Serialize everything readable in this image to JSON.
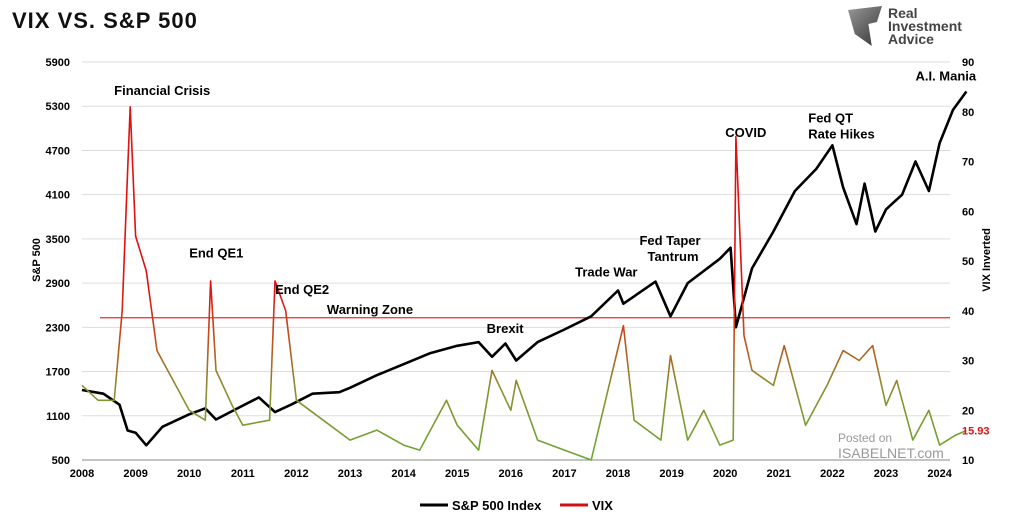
{
  "header": {
    "title": "VIX VS. S&P 500",
    "logo": "Real Investment Advice"
  },
  "watermark": {
    "line1": "Posted on",
    "line2": "ISABELNET.com"
  },
  "chart_data": {
    "type": "line",
    "title": "VIX VS. S&P 500",
    "ylabel": "S&P 500",
    "y2label": "VIX Inverted",
    "xlim": [
      2008,
      2024.6
    ],
    "ylim": [
      500,
      5900
    ],
    "y2lim": [
      10,
      90
    ],
    "xticks": [
      "2008",
      "2009",
      "2010",
      "2011",
      "2012",
      "2013",
      "2014",
      "2015",
      "2016",
      "2017",
      "2018",
      "2019",
      "2020",
      "2021",
      "2022",
      "2023",
      "2024"
    ],
    "yticks": [
      "500",
      "1100",
      "1700",
      "2300",
      "2900",
      "3500",
      "4100",
      "4700",
      "5300",
      "5900"
    ],
    "y2ticks": [
      "10",
      "20",
      "30",
      "40",
      "50",
      "60",
      "70",
      "80",
      "90"
    ],
    "grid": true,
    "legend_placement": "bottom",
    "warning_zone": {
      "label": "Warning Zone",
      "value_left_axis": 2430,
      "color": "#e03030"
    },
    "last_vix_label": "15.93",
    "annotations": [
      {
        "text": "Financial Crisis",
        "x": 2008.6,
        "y": 5450
      },
      {
        "text": "End QE1",
        "x": 2010.0,
        "y": 3250
      },
      {
        "text": "End QE2",
        "x": 2011.6,
        "y": 2750
      },
      {
        "text": "Brexit",
        "x": 2015.55,
        "y": 2220
      },
      {
        "text": "Trade War",
        "x": 2017.2,
        "y": 2990
      },
      {
        "text": "Fed Taper",
        "x": 2018.4,
        "y": 3420
      },
      {
        "text": "Tantrum",
        "x": 2018.55,
        "y": 3200
      },
      {
        "text": "COVID",
        "x": 2020.0,
        "y": 4880
      },
      {
        "text": "Fed QT",
        "x": 2021.55,
        "y": 5080
      },
      {
        "text": "Rate Hikes",
        "x": 2021.55,
        "y": 4860
      },
      {
        "text": "A.I. Mania",
        "x": 2023.55,
        "y": 5650
      }
    ],
    "series": [
      {
        "name": "S&P 500 Index",
        "axis": "left",
        "color": "#000000",
        "x": [
          2008.0,
          2008.4,
          2008.7,
          2008.85,
          2009.0,
          2009.2,
          2009.5,
          2010.0,
          2010.3,
          2010.5,
          2010.9,
          2011.3,
          2011.6,
          2011.9,
          2012.3,
          2012.8,
          2013.0,
          2013.5,
          2014.0,
          2014.5,
          2015.0,
          2015.4,
          2015.65,
          2015.9,
          2016.1,
          2016.5,
          2017.0,
          2017.5,
          2018.0,
          2018.1,
          2018.7,
          2018.98,
          2019.3,
          2019.9,
          2020.1,
          2020.2,
          2020.5,
          2020.9,
          2021.3,
          2021.7,
          2022.0,
          2022.2,
          2022.45,
          2022.6,
          2022.8,
          2023.0,
          2023.3,
          2023.55,
          2023.8,
          2024.0,
          2024.25,
          2024.5
        ],
        "y": [
          1450,
          1400,
          1250,
          900,
          870,
          700,
          950,
          1120,
          1200,
          1050,
          1200,
          1350,
          1150,
          1250,
          1400,
          1420,
          1480,
          1650,
          1800,
          1950,
          2050,
          2100,
          1900,
          2080,
          1850,
          2100,
          2270,
          2450,
          2800,
          2620,
          2920,
          2450,
          2900,
          3230,
          3380,
          2300,
          3100,
          3600,
          4150,
          4450,
          4770,
          4200,
          3700,
          4250,
          3600,
          3900,
          4100,
          4550,
          4150,
          4800,
          5250,
          5500
        ]
      },
      {
        "name": "VIX",
        "axis": "right",
        "color": "#d01010",
        "x": [
          2008.0,
          2008.3,
          2008.6,
          2008.75,
          2008.85,
          2008.9,
          2009.0,
          2009.2,
          2009.4,
          2009.8,
          2010.0,
          2010.3,
          2010.4,
          2010.5,
          2010.8,
          2011.0,
          2011.5,
          2011.6,
          2011.8,
          2012.0,
          2012.5,
          2013.0,
          2013.5,
          2014.0,
          2014.3,
          2014.8,
          2015.0,
          2015.4,
          2015.65,
          2016.0,
          2016.1,
          2016.5,
          2017.0,
          2017.5,
          2018.1,
          2018.3,
          2018.8,
          2018.98,
          2019.3,
          2019.6,
          2019.9,
          2020.15,
          2020.2,
          2020.35,
          2020.5,
          2020.9,
          2021.1,
          2021.5,
          2021.9,
          2022.2,
          2022.5,
          2022.75,
          2023.0,
          2023.2,
          2023.5,
          2023.8,
          2024.0,
          2024.3,
          2024.5
        ],
        "y": [
          25,
          22,
          22,
          40,
          68,
          81,
          55,
          48,
          32,
          24,
          20,
          18,
          46,
          28,
          21,
          17,
          18,
          46,
          40,
          22,
          18,
          14,
          16,
          13,
          12,
          22,
          17,
          12,
          28,
          20,
          26,
          14,
          12,
          10,
          37,
          18,
          14,
          31,
          14,
          20,
          13,
          14,
          75,
          35,
          28,
          25,
          33,
          17,
          25,
          32,
          30,
          33,
          21,
          26,
          14,
          20,
          13,
          15,
          15.93
        ]
      }
    ]
  }
}
